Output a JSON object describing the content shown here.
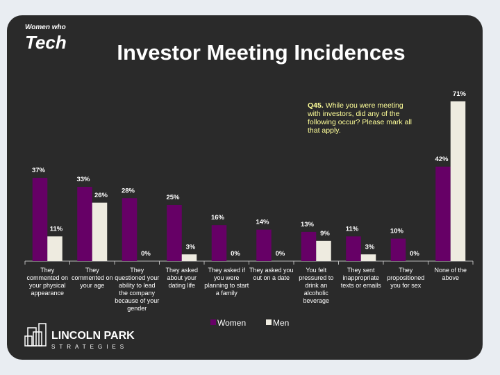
{
  "logo": {
    "top": "Women who",
    "main": "Tech"
  },
  "footer_logo": {
    "main": "LINCOLN PARK",
    "sub": "STRATEGIES"
  },
  "chart_data": {
    "type": "bar",
    "title": "Investor Meeting Incidences",
    "annotation_label": "Q45.",
    "annotation": "While you were meeting with investors, did any of the following occur? Please mark all that apply.",
    "categories": [
      "They commented on your physical appearance",
      "They commented on your age",
      "They questioned your ability to lead the company because of your gender",
      "They asked about your dating life",
      "They asked if you were planning to start a family",
      "They asked you out on a date",
      "You felt pressured to drink an alcoholic beverage",
      "They sent inappropriate texts or emails",
      "They propositioned you for sex",
      "None of the above"
    ],
    "series": [
      {
        "name": "Women",
        "color": "#660066",
        "values": [
          37,
          33,
          28,
          25,
          16,
          14,
          13,
          11,
          10,
          42
        ],
        "value_labels": [
          "37%",
          "33%",
          "28%",
          "25%",
          "16%",
          "14%",
          "13%",
          "11%",
          "10%",
          "42%"
        ]
      },
      {
        "name": "Men",
        "color": "#eeebe0",
        "values": [
          11,
          26,
          0,
          3,
          0,
          0,
          9,
          3,
          0,
          71
        ],
        "value_labels": [
          "11%",
          "26%",
          "0%",
          "3%",
          "0%",
          "0%",
          "9%",
          "3%",
          "0%",
          "71%"
        ]
      }
    ],
    "ylim": [
      0,
      75
    ],
    "legend": "bottom"
  }
}
